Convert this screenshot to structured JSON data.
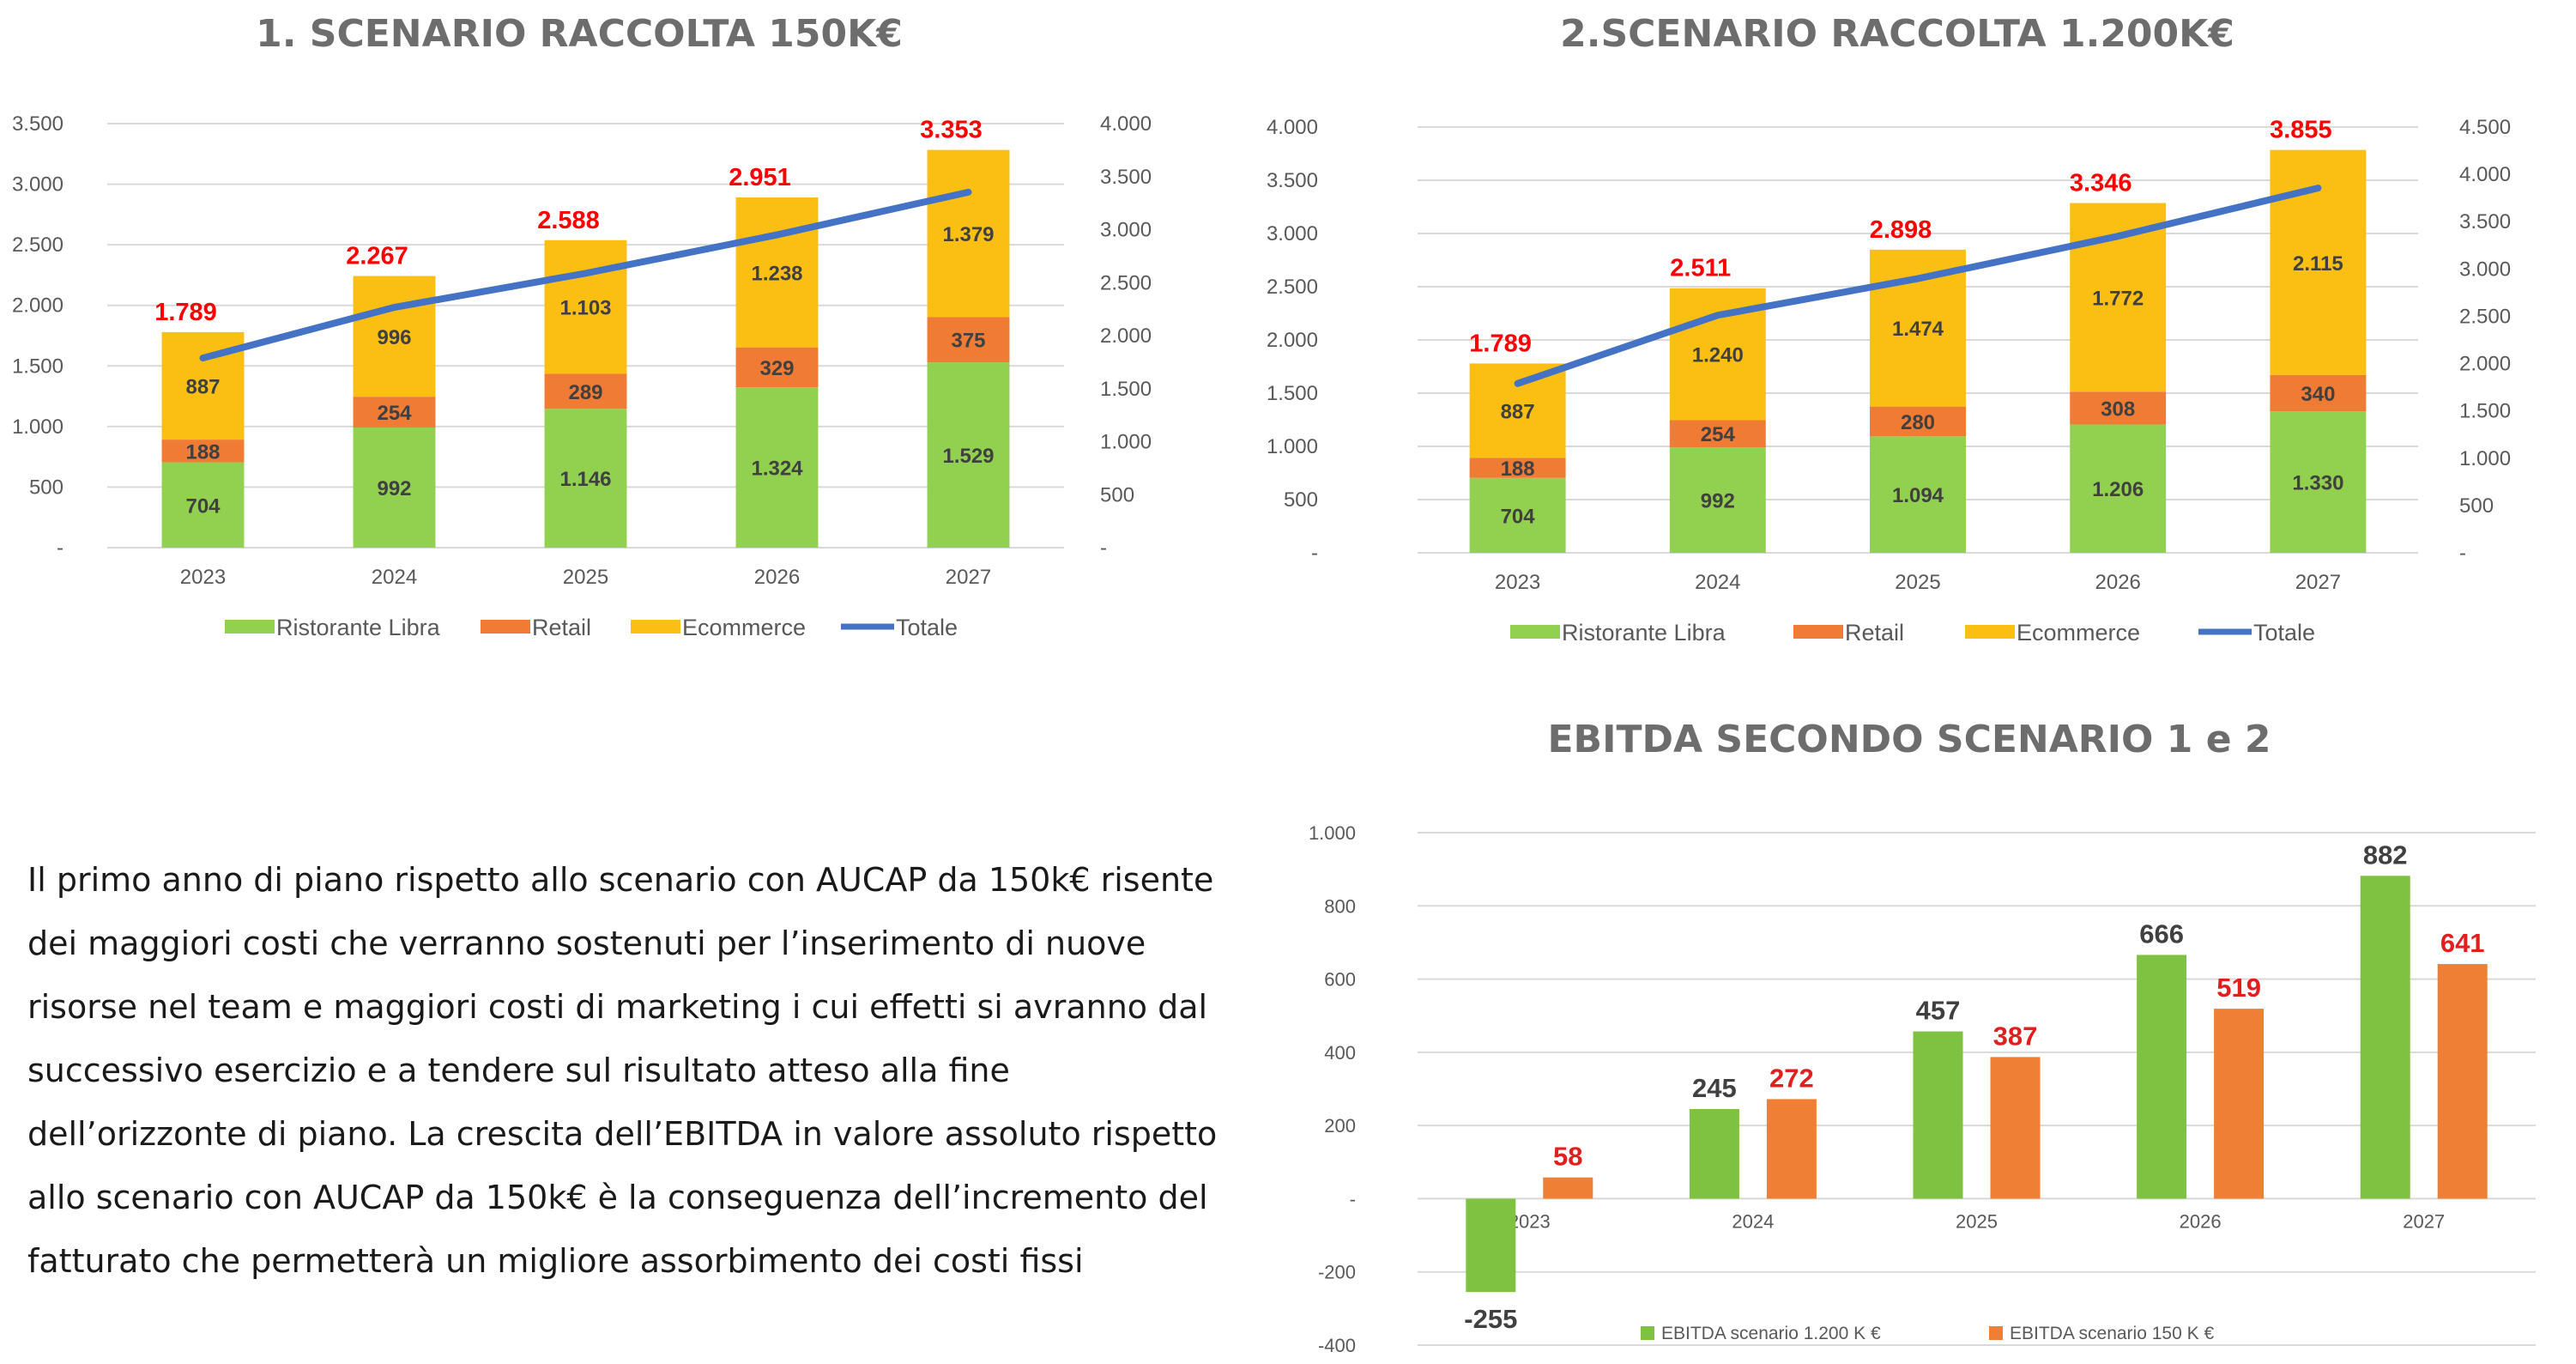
{
  "titles": {
    "chart1": "1. SCENARIO RACCOLTA 150K€",
    "chart2": "2.SCENARIO RACCOLTA 1.200K€",
    "chart3": "EBITDA SECONDO SCENARIO 1 e 2"
  },
  "paragraph": "Il primo anno di piano rispetto allo scenario con AUCAP da 150k€ risente dei maggiori costi che verranno sostenuti per l’inserimento di nuove risorse nel team e maggiori costi di marketing i cui effetti si avranno dal successivo esercizio e a tendere sul risultato atteso alla fine dell’orizzonte di piano. La crescita dell’EBITDA in valore assoluto rispetto allo scenario con AUCAP da 150k€ è la conseguenza dell’incremento del fatturato che permetterà un migliore assorbimento dei costi fissi",
  "colors": {
    "ristorante": "#92d050",
    "retail": "#f07b34",
    "ecommerce": "#fbbf13",
    "totale": "#4472c4",
    "ebitda_1200": "#7fc241",
    "ebitda_150": "#ee7f34",
    "total_label": "#ff0000"
  },
  "chart_data": [
    {
      "type": "bar",
      "stacked": true,
      "title": "1. SCENARIO RACCOLTA 150K€",
      "categories": [
        "2023",
        "2024",
        "2025",
        "2026",
        "2027"
      ],
      "series": [
        {
          "name": "Ristorante Libra",
          "values": [
            704,
            992,
            1146,
            1324,
            1529
          ],
          "labels": [
            "704",
            "992",
            "1.146",
            "1.324",
            "1.529"
          ]
        },
        {
          "name": "Retail",
          "values": [
            188,
            254,
            289,
            329,
            375
          ],
          "labels": [
            "188",
            "254",
            "289",
            "329",
            "375"
          ]
        },
        {
          "name": "Ecommerce",
          "values": [
            887,
            996,
            1103,
            1238,
            1379
          ],
          "labels": [
            "887",
            "996",
            "1.103",
            "1.238",
            "1.379"
          ]
        }
      ],
      "line": {
        "name": "Totale",
        "values": [
          1789,
          2267,
          2588,
          2951,
          3353
        ],
        "labels": [
          "1.789",
          "2.267",
          "2.588",
          "2.951",
          "3.353"
        ],
        "axis": "right"
      },
      "ylim": [
        0,
        3500
      ],
      "y_ticks": [
        "-",
        "500",
        "1.000",
        "1.500",
        "2.000",
        "2.500",
        "3.000",
        "3.500"
      ],
      "y2lim": [
        0,
        4000
      ],
      "y2_ticks": [
        "-",
        "500",
        "1.000",
        "1.500",
        "2.000",
        "2.500",
        "3.000",
        "3.500",
        "4.000"
      ],
      "legend": [
        "Ristorante Libra",
        "Retail",
        "Ecommerce",
        "Totale"
      ],
      "legend_position": "bottom",
      "grid": true
    },
    {
      "type": "bar",
      "stacked": true,
      "title": "2.SCENARIO RACCOLTA 1.200K€",
      "categories": [
        "2023",
        "2024",
        "2025",
        "2026",
        "2027"
      ],
      "series": [
        {
          "name": "Ristorante Libra",
          "values": [
            704,
            992,
            1094,
            1206,
            1330
          ],
          "labels": [
            "704",
            "992",
            "1.094",
            "1.206",
            "1.330"
          ]
        },
        {
          "name": "Retail",
          "values": [
            188,
            254,
            280,
            308,
            340
          ],
          "labels": [
            "188",
            "254",
            "280",
            "308",
            "340"
          ]
        },
        {
          "name": "Ecommerce",
          "values": [
            887,
            1240,
            1474,
            1772,
            2115
          ],
          "labels": [
            "887",
            "1.240",
            "1.474",
            "1.772",
            "2.115"
          ]
        }
      ],
      "line": {
        "name": "Totale",
        "values": [
          1789,
          2511,
          2898,
          3346,
          3855
        ],
        "labels": [
          "1.789",
          "2.511",
          "2.898",
          "3.346",
          "3.855"
        ],
        "axis": "right"
      },
      "ylim": [
        0,
        4000
      ],
      "y_ticks": [
        "-",
        "500",
        "1.000",
        "1.500",
        "2.000",
        "2.500",
        "3.000",
        "3.500",
        "4.000"
      ],
      "y2lim": [
        0,
        4500
      ],
      "y2_ticks": [
        "-",
        "500",
        "1.000",
        "1.500",
        "2.000",
        "2.500",
        "3.000",
        "3.500",
        "4.000",
        "4.500"
      ],
      "legend": [
        "Ristorante Libra",
        "Retail",
        "Ecommerce",
        "Totale"
      ],
      "legend_position": "bottom",
      "grid": true
    },
    {
      "type": "bar",
      "title": "EBITDA SECONDO SCENARIO 1 e 2",
      "categories": [
        "2023",
        "2024",
        "2025",
        "2026",
        "2027"
      ],
      "series": [
        {
          "name": "EBITDA scenario 1.200 K €",
          "values": [
            -255,
            245,
            457,
            666,
            882
          ],
          "labels": [
            "-255",
            "245",
            "457",
            "666",
            "882"
          ]
        },
        {
          "name": "EBITDA scenario 150 K €",
          "values": [
            58,
            272,
            387,
            519,
            641
          ],
          "labels": [
            "58",
            "272",
            "387",
            "519",
            "641"
          ]
        }
      ],
      "ylim": [
        -400,
        1000
      ],
      "y_ticks": [
        "-400",
        "-200",
        "-",
        "200",
        "400",
        "600",
        "800",
        "1.000"
      ],
      "legend": [
        "EBITDA scenario 1.200 K €",
        "EBITDA scenario 150 K €"
      ],
      "legend_position": "bottom",
      "grid": true
    }
  ]
}
